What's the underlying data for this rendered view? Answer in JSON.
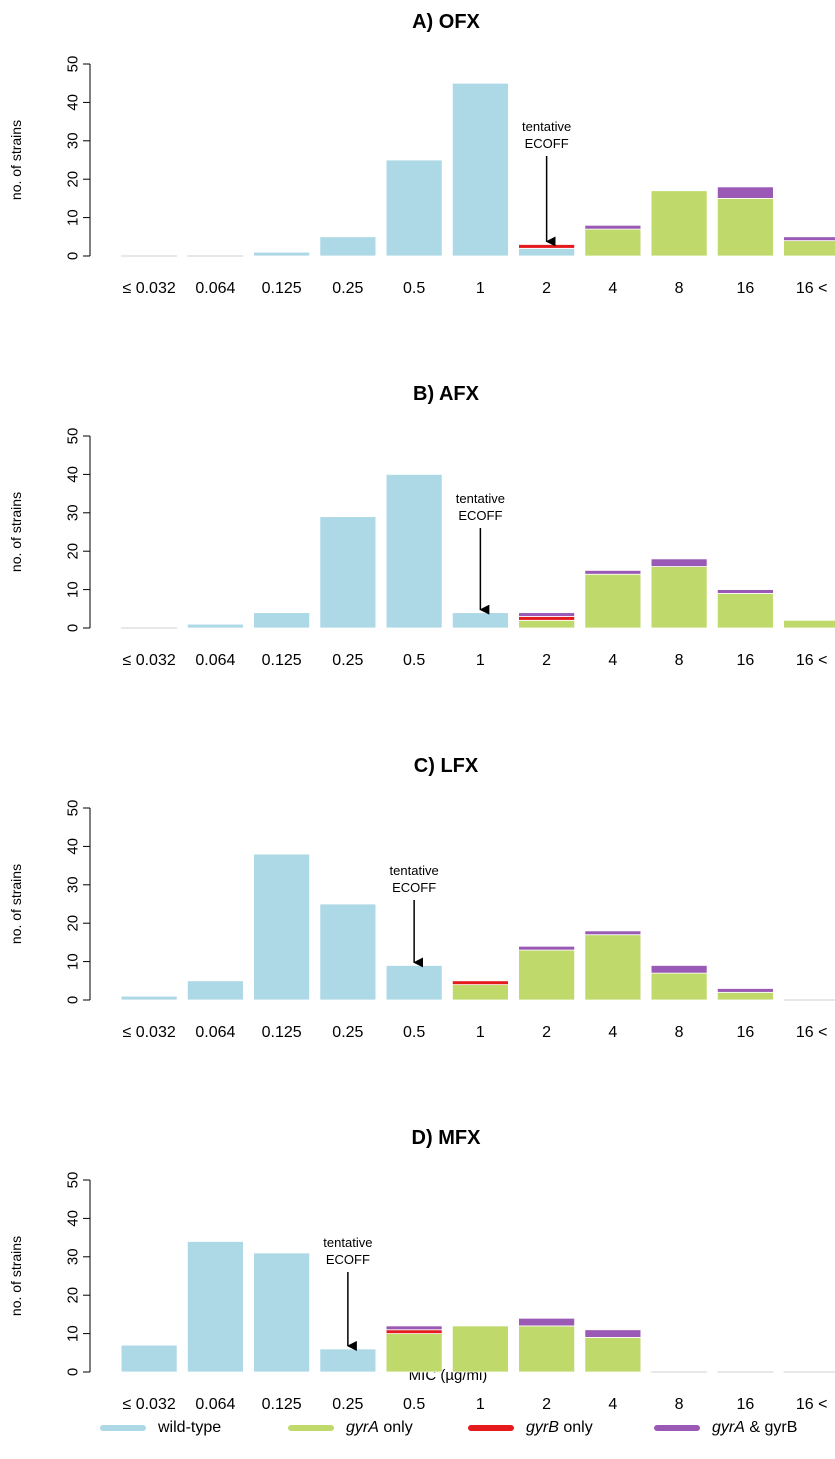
{
  "colors": {
    "wild_type": "#add8e6",
    "gyrA_only": "#bfd96a",
    "gyrB_only": "#e41a1c",
    "gyrA_gyrB": "#9b59b6"
  },
  "ylabel": "no. of strains",
  "xlabel": "MIC (µg/ml)",
  "annotation": {
    "line1": "tentative",
    "line2": "ECOFF"
  },
  "legend": [
    {
      "key": "wild_type",
      "text": "wild-type",
      "gene": "",
      "suffix": ""
    },
    {
      "key": "gyrA_only",
      "text": "",
      "gene": "gyrA",
      "suffix": " only"
    },
    {
      "key": "gyrB_only",
      "text": "",
      "gene": "gyrB",
      "suffix": " only"
    },
    {
      "key": "gyrA_gyrB",
      "text": "",
      "gene": "gyrA",
      "suffix": " & gyrB"
    }
  ],
  "chart_data": [
    {
      "type": "bar",
      "title": "A) OFX",
      "categories": [
        "≤ 0.032",
        "0.064",
        "0.125",
        "0.25",
        "0.5",
        "1",
        "2",
        "4",
        "8",
        "16",
        "16 <"
      ],
      "ylim": [
        0,
        50
      ],
      "yticks": [
        0,
        10,
        20,
        30,
        40,
        50
      ],
      "ecoff_index": 6,
      "series": [
        {
          "name": "wild-type",
          "values": [
            0,
            0,
            1,
            5,
            25,
            45,
            2,
            0,
            0,
            0,
            0
          ]
        },
        {
          "name": "gyrA only",
          "values": [
            0,
            0,
            0,
            0,
            0,
            0,
            0,
            7,
            17,
            15,
            4
          ]
        },
        {
          "name": "gyrB only",
          "values": [
            0,
            0,
            0,
            0,
            0,
            0,
            1,
            0,
            0,
            0,
            0
          ]
        },
        {
          "name": "gyrA & gyrB",
          "values": [
            0,
            0,
            0,
            0,
            0,
            0,
            0,
            1,
            0,
            3,
            1
          ]
        }
      ]
    },
    {
      "type": "bar",
      "title": "B) AFX",
      "categories": [
        "≤ 0.032",
        "0.064",
        "0.125",
        "0.25",
        "0.5",
        "1",
        "2",
        "4",
        "8",
        "16",
        "16 <"
      ],
      "ylim": [
        0,
        50
      ],
      "yticks": [
        0,
        10,
        20,
        30,
        40,
        50
      ],
      "ecoff_index": 5,
      "series": [
        {
          "name": "wild-type",
          "values": [
            0,
            1,
            4,
            29,
            40,
            4,
            0,
            0,
            0,
            0,
            0
          ]
        },
        {
          "name": "gyrA only",
          "values": [
            0,
            0,
            0,
            0,
            0,
            0,
            2,
            14,
            16,
            9,
            2
          ]
        },
        {
          "name": "gyrB only",
          "values": [
            0,
            0,
            0,
            0,
            0,
            0,
            1,
            0,
            0,
            0,
            0
          ]
        },
        {
          "name": "gyrA & gyrB",
          "values": [
            0,
            0,
            0,
            0,
            0,
            0,
            1,
            1,
            2,
            1,
            0
          ]
        }
      ]
    },
    {
      "type": "bar",
      "title": "C) LFX",
      "categories": [
        "≤ 0.032",
        "0.064",
        "0.125",
        "0.25",
        "0.5",
        "1",
        "2",
        "4",
        "8",
        "16",
        "16 <"
      ],
      "ylim": [
        0,
        50
      ],
      "yticks": [
        0,
        10,
        20,
        30,
        40,
        50
      ],
      "ecoff_index": 4,
      "series": [
        {
          "name": "wild-type",
          "values": [
            1,
            5,
            38,
            25,
            9,
            0,
            0,
            0,
            0,
            0,
            0
          ]
        },
        {
          "name": "gyrA only",
          "values": [
            0,
            0,
            0,
            0,
            0,
            4,
            13,
            17,
            7,
            2,
            0
          ]
        },
        {
          "name": "gyrB only",
          "values": [
            0,
            0,
            0,
            0,
            0,
            1,
            0,
            0,
            0,
            0,
            0
          ]
        },
        {
          "name": "gyrA & gyrB",
          "values": [
            0,
            0,
            0,
            0,
            0,
            0,
            1,
            1,
            2,
            1,
            0
          ]
        }
      ]
    },
    {
      "type": "bar",
      "title": "D) MFX",
      "categories": [
        "≤ 0.032",
        "0.064",
        "0.125",
        "0.25",
        "0.5",
        "1",
        "2",
        "4",
        "8",
        "16",
        "16 <"
      ],
      "ylim": [
        0,
        50
      ],
      "yticks": [
        0,
        10,
        20,
        30,
        40,
        50
      ],
      "ecoff_index": 3,
      "series": [
        {
          "name": "wild-type",
          "values": [
            7,
            34,
            31,
            6,
            0,
            0,
            0,
            0,
            0,
            0,
            0
          ]
        },
        {
          "name": "gyrA only",
          "values": [
            0,
            0,
            0,
            0,
            10,
            12,
            12,
            9,
            0,
            0,
            0
          ]
        },
        {
          "name": "gyrB only",
          "values": [
            0,
            0,
            0,
            0,
            1,
            0,
            0,
            0,
            0,
            0,
            0
          ]
        },
        {
          "name": "gyrA & gyrB",
          "values": [
            0,
            0,
            0,
            0,
            1,
            0,
            2,
            2,
            0,
            0,
            0
          ]
        }
      ]
    }
  ]
}
